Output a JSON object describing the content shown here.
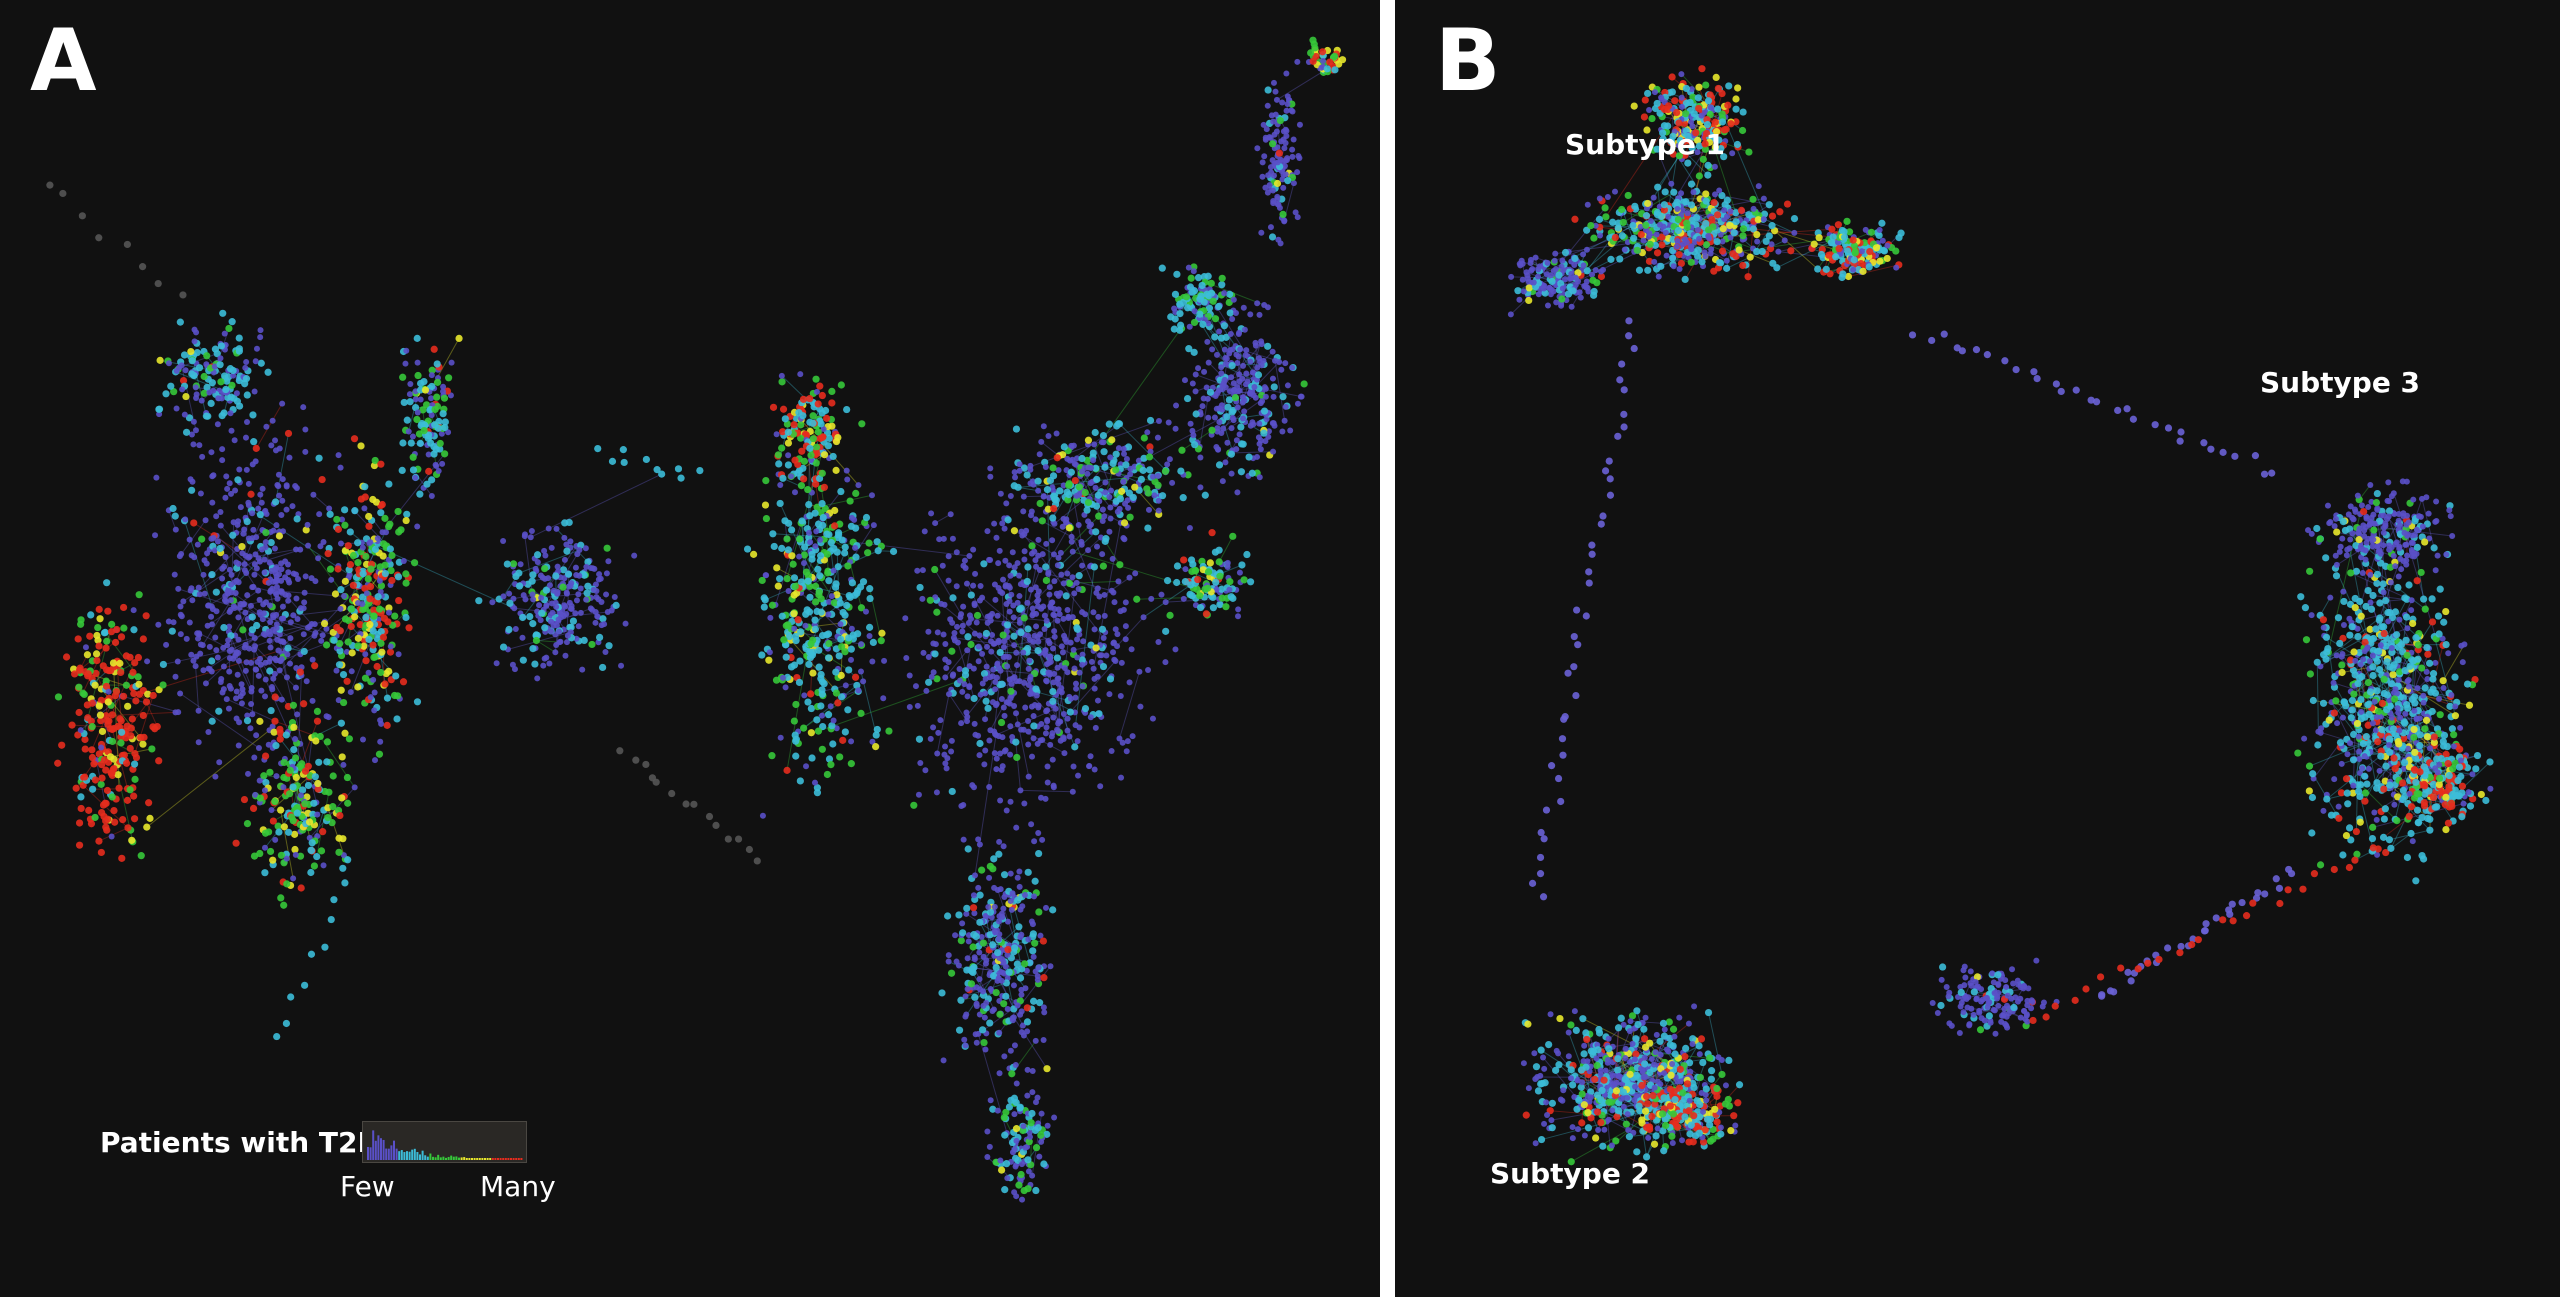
{
  "panels": {
    "a": {
      "letter": "A"
    },
    "b": {
      "letter": "B"
    }
  },
  "legend": {
    "title": "Patients with T2D",
    "low": "Few",
    "high": "Many",
    "colors": [
      "#5a50c8",
      "#3cbcd8",
      "#36c83a",
      "#e8e82c",
      "#e62c1e"
    ]
  },
  "subtypes": {
    "subtype1": "Subtype 1",
    "subtype2": "Subtype 2",
    "subtype3": "Subtype 3"
  }
}
